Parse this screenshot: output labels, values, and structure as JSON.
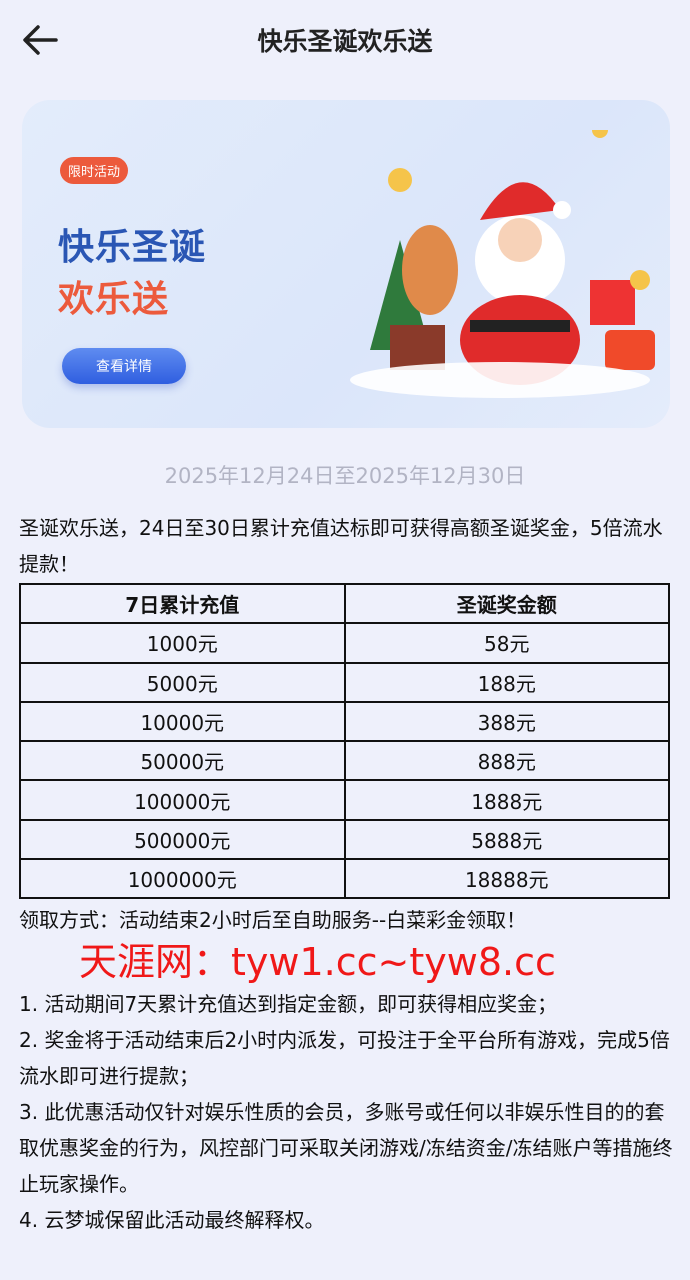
{
  "header": {
    "title": "快乐圣诞欢乐送",
    "back_icon": "arrow-left-icon"
  },
  "banner": {
    "tag": "限时活动",
    "title_line1": "快乐圣诞",
    "title_line2": "欢乐送",
    "button": "查看详情",
    "colors": {
      "blue": "#2a56b4",
      "orange": "#ec5a3c"
    }
  },
  "date_range": "2025年12月24日至2025年12月30日",
  "intro": "圣诞欢乐送，24日至30日累计充值达标即可获得高额圣诞奖金，5倍流水提款！",
  "table": {
    "headers": [
      "7日累计充值",
      "圣诞奖金额"
    ],
    "rows": [
      [
        "1000元",
        "58元"
      ],
      [
        "5000元",
        "188元"
      ],
      [
        "10000元",
        "388元"
      ],
      [
        "50000元",
        "888元"
      ],
      [
        "100000元",
        "1888元"
      ],
      [
        "500000元",
        "5888元"
      ],
      [
        "1000000元",
        "18888元"
      ]
    ]
  },
  "claim": "领取方式：活动结束2小时后至自助服务--白菜彩金领取！",
  "rules": [
    "1. 活动期间7天累计充值达到指定金额，即可获得相应奖金；",
    "2. 奖金将于活动结束后2小时内派发，可投注于全平台所有游戏，完成5倍流水即可进行提款；",
    "3. 此优惠活动仅针对娱乐性质的会员，多账号或任何以非娱乐性目的的套取优惠奖金的行为，风控部门可采取关闭游戏/冻结资金/冻结账户等措施终止玩家操作。",
    "4. 云梦城保留此活动最终解释权。"
  ],
  "watermark": "天涯网：tyw1.cc~tyw8.cc"
}
